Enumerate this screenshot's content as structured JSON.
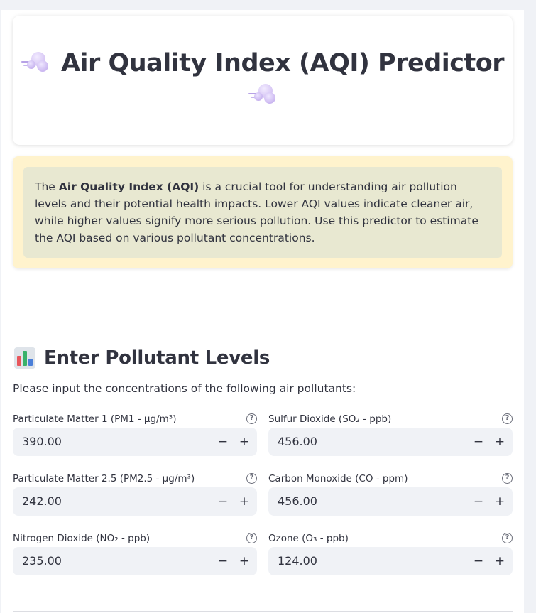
{
  "header": {
    "title": "Air Quality Index (AQI) Predictor",
    "icon": "cloud-puff-icon"
  },
  "info": {
    "intro": "The ",
    "bold": "Air Quality Index (AQI)",
    "rest": " is a crucial tool for understanding air pollution levels and their potential health impacts. Lower AQI values indicate cleaner air, while higher values signify more serious pollution. Use this predictor to estimate the AQI based on various pollutant concentrations."
  },
  "section": {
    "icon": "bar-chart-icon",
    "title": "Enter Pollutant Levels",
    "subtitle": "Please input the concentrations of the following air pollutants:"
  },
  "fields": [
    {
      "label": "Particulate Matter 1 (PM1 - µg/m³)",
      "value": "390.00"
    },
    {
      "label": "Sulfur Dioxide (SO₂ - ppb)",
      "value": "456.00"
    },
    {
      "label": "Particulate Matter 2.5 (PM2.5 - µg/m³)",
      "value": "242.00"
    },
    {
      "label": "Carbon Monoxide (CO - ppm)",
      "value": "456.00"
    },
    {
      "label": "Nitrogen Dioxide (NO₂ - ppb)",
      "value": "235.00"
    },
    {
      "label": "Ozone (O₃ - ppb)",
      "value": "124.00"
    }
  ],
  "controls": {
    "minus": "−",
    "plus": "+",
    "help": "?"
  }
}
